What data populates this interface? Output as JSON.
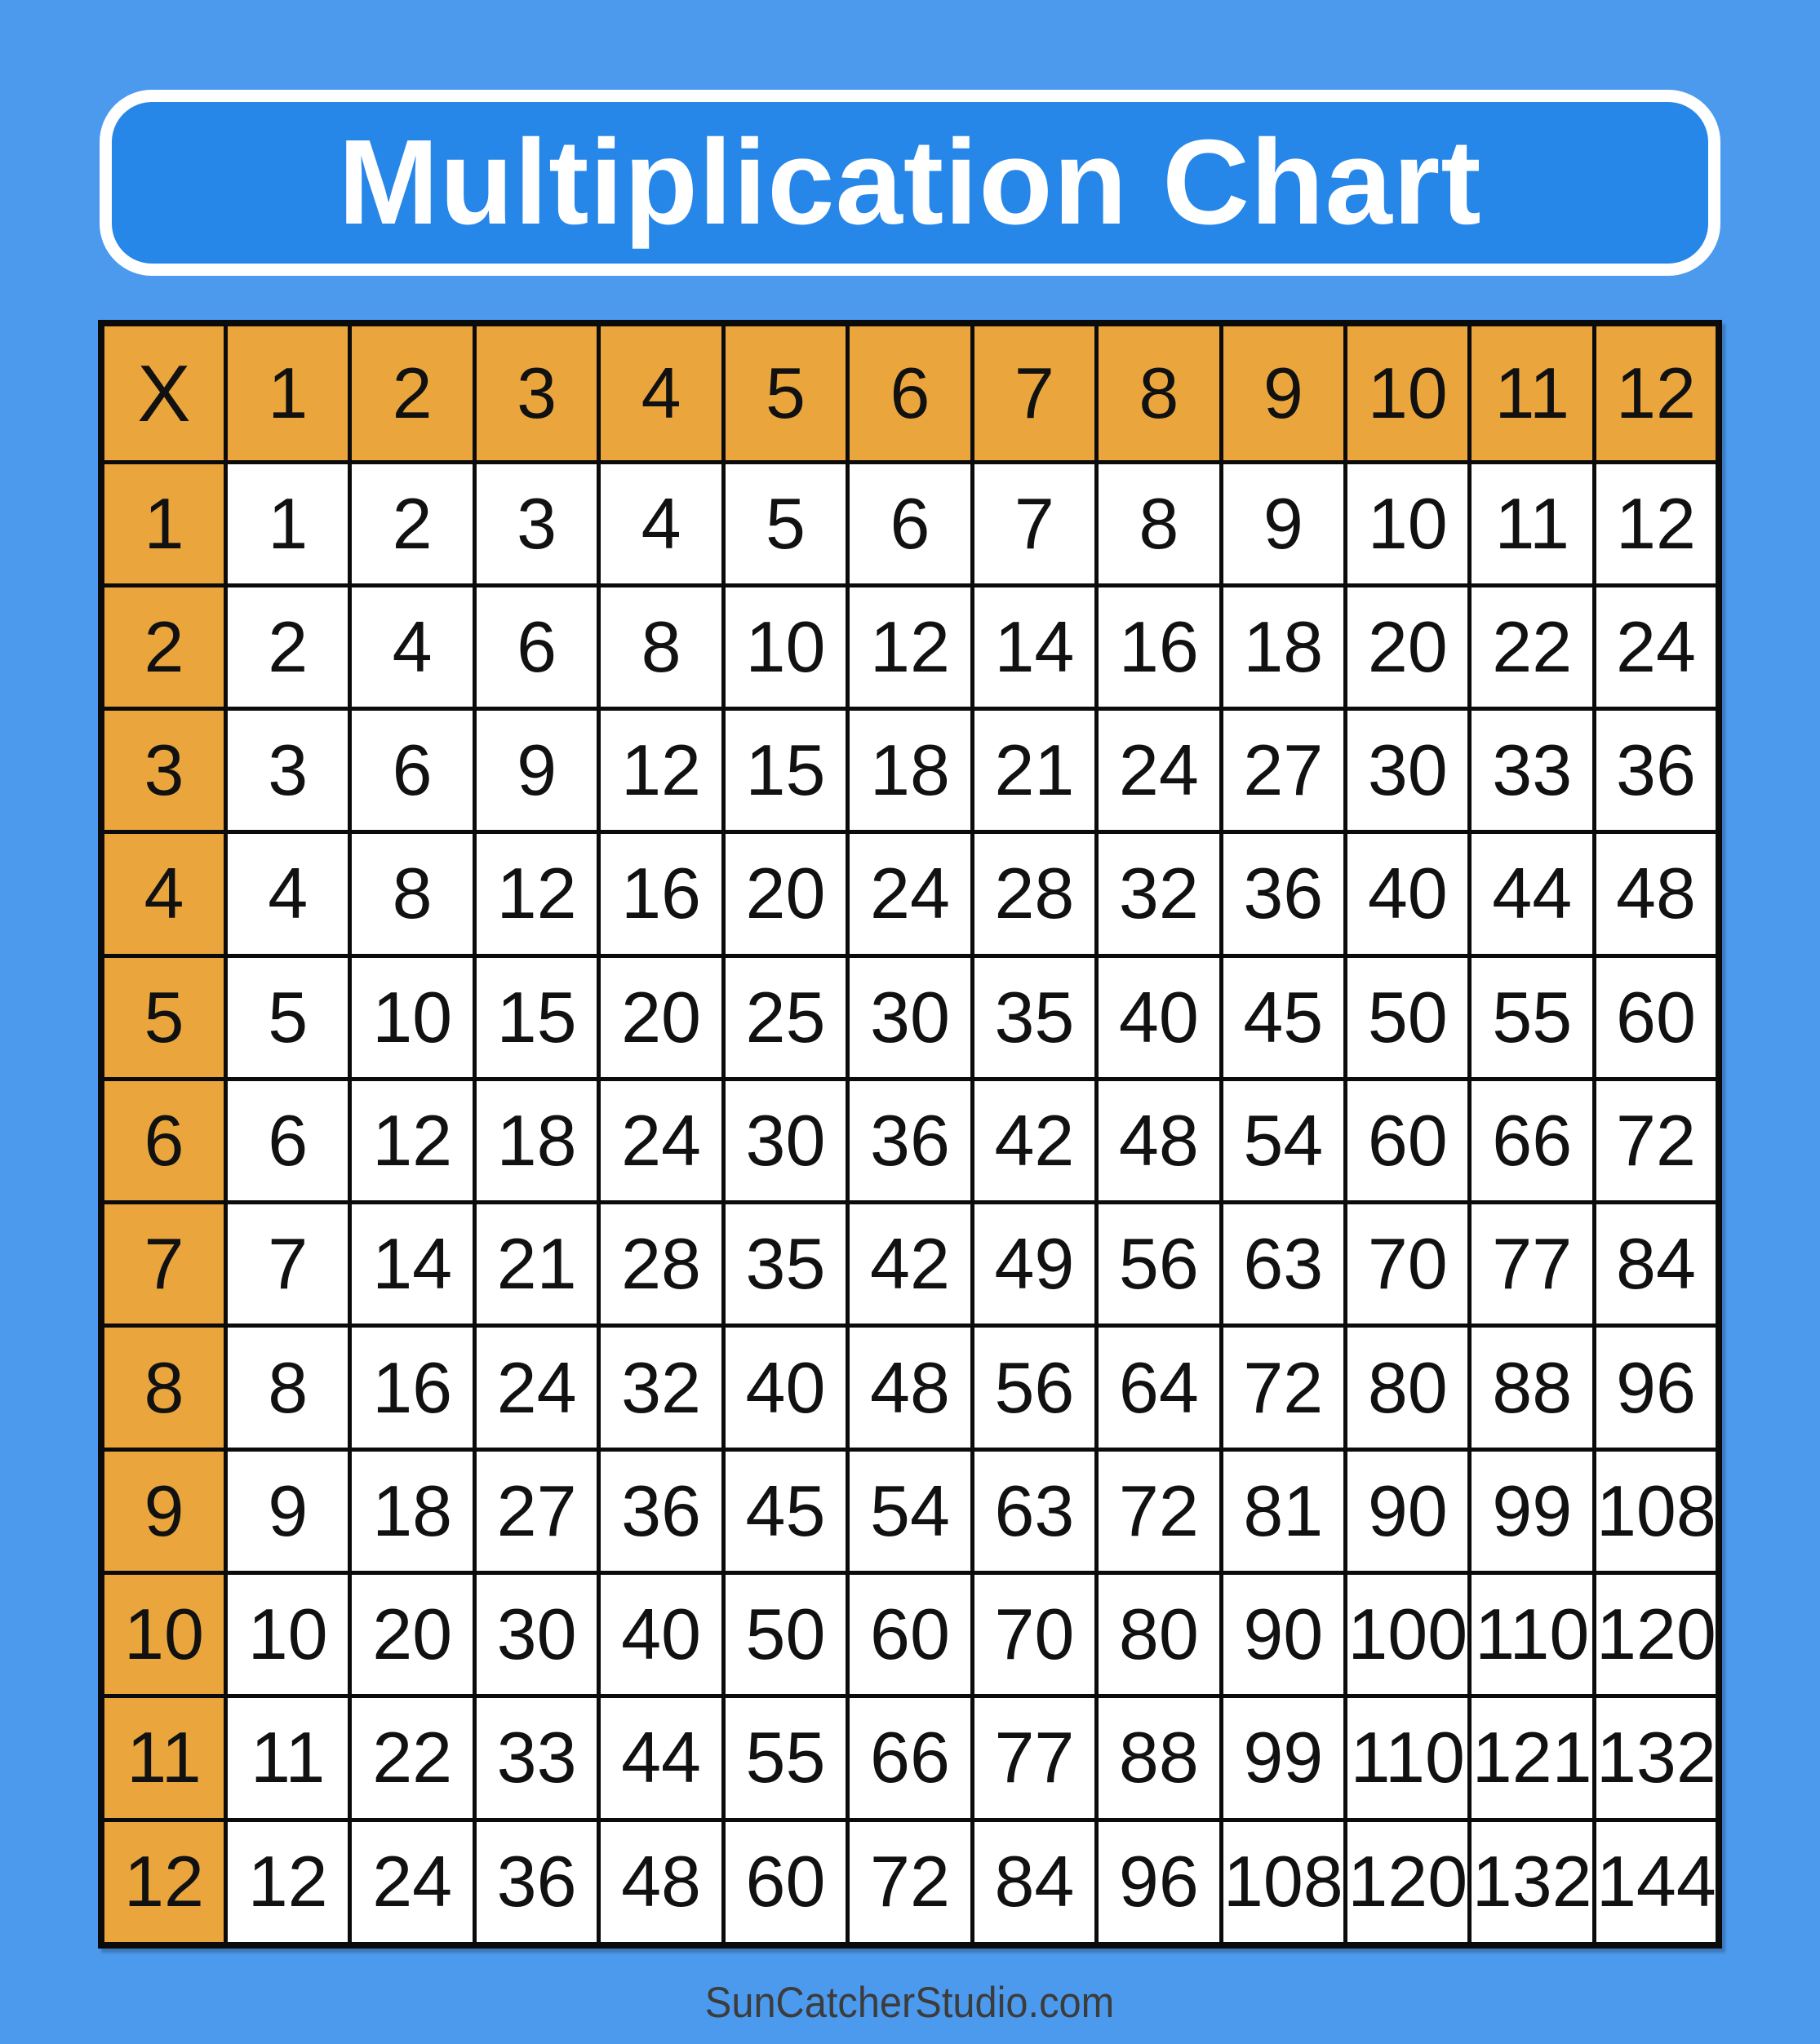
{
  "page": {
    "title": "Multiplication Chart",
    "footer": "SunCatcherStudio.com",
    "background_color": "#4C9AEE"
  },
  "colors": {
    "page_background": "#4C9AEE",
    "title_box_fill": "#2787E9",
    "title_box_border": "#FFFFFF",
    "title_text": "#FFFFFF",
    "header_cell_fill": "#EAA63C",
    "body_cell_fill": "#FFFFFF",
    "grid_line": "#0B0B0B",
    "cell_text": "#111111",
    "footer_text": "#3C3C3C"
  },
  "chart_data": {
    "type": "table",
    "title": "Multiplication Chart",
    "corner_label": "X",
    "column_headers": [
      1,
      2,
      3,
      4,
      5,
      6,
      7,
      8,
      9,
      10,
      11,
      12
    ],
    "row_headers": [
      1,
      2,
      3,
      4,
      5,
      6,
      7,
      8,
      9,
      10,
      11,
      12
    ],
    "rows": [
      [
        1,
        2,
        3,
        4,
        5,
        6,
        7,
        8,
        9,
        10,
        11,
        12
      ],
      [
        2,
        4,
        6,
        8,
        10,
        12,
        14,
        16,
        18,
        20,
        22,
        24
      ],
      [
        3,
        6,
        9,
        12,
        15,
        18,
        21,
        24,
        27,
        30,
        33,
        36
      ],
      [
        4,
        8,
        12,
        16,
        20,
        24,
        28,
        32,
        36,
        40,
        44,
        48
      ],
      [
        5,
        10,
        15,
        20,
        25,
        30,
        35,
        40,
        45,
        50,
        55,
        60
      ],
      [
        6,
        12,
        18,
        24,
        30,
        36,
        42,
        48,
        54,
        60,
        66,
        72
      ],
      [
        7,
        14,
        21,
        28,
        35,
        42,
        49,
        56,
        63,
        70,
        77,
        84
      ],
      [
        8,
        16,
        24,
        32,
        40,
        48,
        56,
        64,
        72,
        80,
        88,
        96
      ],
      [
        9,
        18,
        27,
        36,
        45,
        54,
        63,
        72,
        81,
        90,
        99,
        108
      ],
      [
        10,
        20,
        30,
        40,
        50,
        60,
        70,
        80,
        90,
        100,
        110,
        120
      ],
      [
        11,
        22,
        33,
        44,
        55,
        66,
        77,
        88,
        99,
        110,
        121,
        132
      ],
      [
        12,
        24,
        36,
        48,
        60,
        72,
        84,
        96,
        108,
        120,
        132,
        144
      ]
    ]
  }
}
